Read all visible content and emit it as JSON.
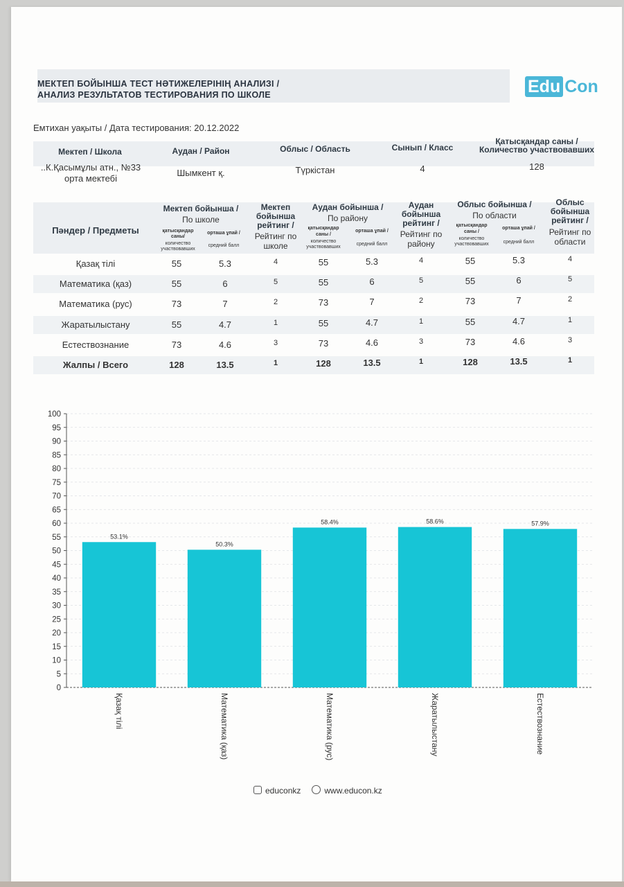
{
  "header": {
    "title_line1": "МЕКТЕП БОЙЫНША ТЕСТ НӘТИЖЕЛЕРІНІҢ АНАЛИЗІ /",
    "title_line2": "АНАЛИЗ РЕЗУЛЬТАТОВ ТЕСТИРОВАНИЯ ПО ШКОЛЕ",
    "logo_part1": "Edu",
    "logo_part2": "Con"
  },
  "exam_date": "Емтихан уақыты / Дата тестирования: 20.12.2022",
  "info_table": {
    "headers": [
      "Мектеп / Школа",
      "Аудан / Район",
      "Облыс / Область",
      "Сынып / Класс",
      "Қатысқандар саны /",
      "Количество участвовавших"
    ],
    "school_line1": "..К.Қасымұлы атн., №33",
    "school_line2": "орта мектебі",
    "district": "Шымкент  қ.",
    "region": "Түркістан",
    "grade": "4",
    "participants": "128"
  },
  "results_table": {
    "subjects_header": "Пәндер / Предметы",
    "school_group": {
      "title": "Мектеп бойынша /",
      "subtitle": "По школе"
    },
    "school_rating": {
      "l1": "Мектеп",
      "l2": "бойынша",
      "l3": "рейтинг /",
      "l4": "Рейтинг по",
      "l5": "школе"
    },
    "district_group": {
      "title": "Аудан бойынша /",
      "subtitle": "По району"
    },
    "district_rating": {
      "l1": "Аудан",
      "l2": "бойынша",
      "l3": "рейтинг /",
      "l4": "Рейтинг по",
      "l5": "району"
    },
    "region_group": {
      "title": "Облыс бойынша /",
      "subtitle": "По области"
    },
    "region_rating": {
      "l1": "Облыс",
      "l2": "бойынша",
      "l3": "рейтинг /",
      "l4": "Рейтинг по",
      "l5": "области"
    },
    "count_sub": {
      "l1": "қатысқандар",
      "l2": "саны/",
      "l3": "количество",
      "l4": "участвовавших"
    },
    "count_sub_alt": {
      "l1": "қатысқандар",
      "l2": "саны /",
      "l3": "количество",
      "l4": "участвовавших"
    },
    "avg_sub": {
      "l1": "орташа ұпай /",
      "l2": "средний балл"
    },
    "rows": [
      {
        "subject": "Қазақ тілі",
        "s_count": "55",
        "s_avg": "5.3",
        "s_rank": "4",
        "d_count": "55",
        "d_avg": "5.3",
        "d_rank": "4",
        "r_count": "55",
        "r_avg": "5.3",
        "r_rank": "4"
      },
      {
        "subject": "Математика (қаз)",
        "s_count": "55",
        "s_avg": "6",
        "s_rank": "5",
        "d_count": "55",
        "d_avg": "6",
        "d_rank": "5",
        "r_count": "55",
        "r_avg": "6",
        "r_rank": "5"
      },
      {
        "subject": "Математика (рус)",
        "s_count": "73",
        "s_avg": "7",
        "s_rank": "2",
        "d_count": "73",
        "d_avg": "7",
        "d_rank": "2",
        "r_count": "73",
        "r_avg": "7",
        "r_rank": "2"
      },
      {
        "subject": "Жаратылыстану",
        "s_count": "55",
        "s_avg": "4.7",
        "s_rank": "1",
        "d_count": "55",
        "d_avg": "4.7",
        "d_rank": "1",
        "r_count": "55",
        "r_avg": "4.7",
        "r_rank": "1"
      },
      {
        "subject": "Естествознание",
        "s_count": "73",
        "s_avg": "4.6",
        "s_rank": "3",
        "d_count": "73",
        "d_avg": "4.6",
        "d_rank": "3",
        "r_count": "73",
        "r_avg": "4.6",
        "r_rank": "3"
      },
      {
        "subject": "Жалпы / Всего",
        "s_count": "128",
        "s_avg": "13.5",
        "s_rank": "1",
        "d_count": "128",
        "d_avg": "13.5",
        "d_rank": "1",
        "r_count": "128",
        "r_avg": "13.5",
        "r_rank": "1"
      }
    ]
  },
  "chart_data": {
    "type": "bar",
    "categories": [
      "Қазақ тілі",
      "Математика (қаз)",
      "Математика (рус)",
      "Жаратылыстану",
      "Естествознание"
    ],
    "values": [
      53.1,
      50.3,
      58.4,
      58.6,
      57.9
    ],
    "data_labels": [
      "53.1%",
      "50.3%",
      "58.4%",
      "58.6%",
      "57.9%"
    ],
    "ylim": [
      0,
      100
    ],
    "yticks": [
      0,
      5,
      10,
      15,
      20,
      25,
      30,
      35,
      40,
      45,
      50,
      55,
      60,
      65,
      70,
      75,
      80,
      85,
      90,
      95,
      100
    ],
    "bar_color": "#17c5d6",
    "grid": true
  },
  "footer": {
    "instagram": "educonkz",
    "website": "www.educon.kz"
  }
}
